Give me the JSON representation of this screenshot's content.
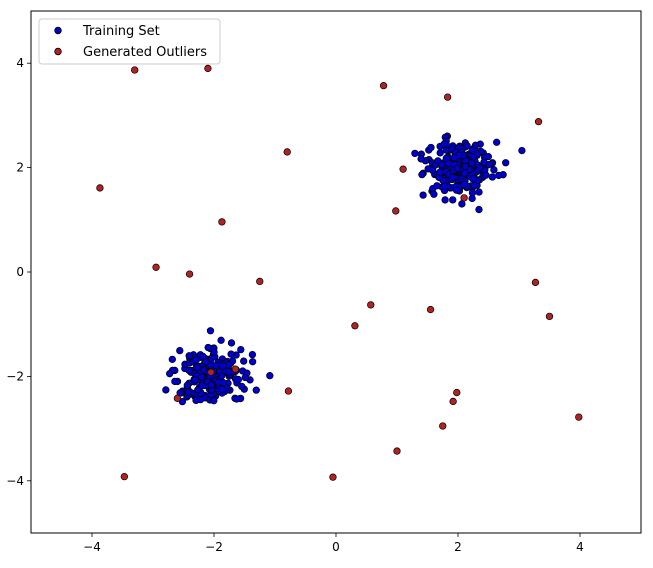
{
  "chart_data": {
    "type": "scatter",
    "title": "",
    "xlabel": "",
    "ylabel": "",
    "xlim": [
      -5,
      5
    ],
    "ylim": [
      -5,
      5
    ],
    "xticks": [
      -4,
      -2,
      0,
      2,
      4
    ],
    "yticks": [
      -4,
      -2,
      0,
      2,
      4
    ],
    "grid": false,
    "legend_position": "top-left",
    "series": [
      {
        "name": "Training Set",
        "color": "#0000cd",
        "edge_color": "#000000",
        "clusters": [
          {
            "center": [
              2,
              2
            ],
            "std": 0.3,
            "count": 200
          },
          {
            "center": [
              -2,
              -2
            ],
            "std": 0.3,
            "count": 200
          }
        ]
      },
      {
        "name": "Generated Outliers",
        "color": "#b22222",
        "edge_color": "#000000",
        "points": [
          [
            -3.3,
            3.87
          ],
          [
            -2.1,
            3.9
          ],
          [
            0.78,
            3.57
          ],
          [
            1.83,
            3.35
          ],
          [
            3.32,
            2.88
          ],
          [
            -0.8,
            2.3
          ],
          [
            1.1,
            1.97
          ],
          [
            0.98,
            1.17
          ],
          [
            2.1,
            1.42
          ],
          [
            -3.87,
            1.61
          ],
          [
            -1.87,
            0.96
          ],
          [
            -2.95,
            0.09
          ],
          [
            -2.4,
            -0.04
          ],
          [
            -1.25,
            -0.18
          ],
          [
            3.27,
            -0.2
          ],
          [
            3.5,
            -0.85
          ],
          [
            0.57,
            -0.63
          ],
          [
            0.31,
            -1.03
          ],
          [
            1.55,
            -0.72
          ],
          [
            -1.65,
            -1.86
          ],
          [
            -2.05,
            -1.92
          ],
          [
            -2.6,
            -2.42
          ],
          [
            -0.78,
            -2.28
          ],
          [
            1.98,
            -2.31
          ],
          [
            1.92,
            -2.48
          ],
          [
            3.98,
            -2.78
          ],
          [
            1.75,
            -2.95
          ],
          [
            1.0,
            -3.43
          ],
          [
            -3.47,
            -3.92
          ],
          [
            -0.05,
            -3.93
          ]
        ]
      }
    ]
  }
}
